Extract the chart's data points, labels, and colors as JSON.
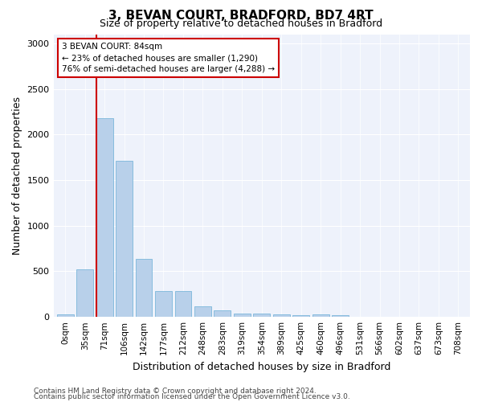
{
  "title": "3, BEVAN COURT, BRADFORD, BD7 4RT",
  "subtitle": "Size of property relative to detached houses in Bradford",
  "xlabel": "Distribution of detached houses by size in Bradford",
  "ylabel": "Number of detached properties",
  "categories": [
    "0sqm",
    "35sqm",
    "71sqm",
    "106sqm",
    "142sqm",
    "177sqm",
    "212sqm",
    "248sqm",
    "283sqm",
    "319sqm",
    "354sqm",
    "389sqm",
    "425sqm",
    "460sqm",
    "496sqm",
    "531sqm",
    "566sqm",
    "602sqm",
    "637sqm",
    "673sqm",
    "708sqm"
  ],
  "values": [
    30,
    520,
    2180,
    1710,
    640,
    280,
    280,
    120,
    70,
    40,
    35,
    25,
    20,
    25,
    20,
    0,
    0,
    0,
    0,
    0,
    0
  ],
  "bar_color": "#b8d0ea",
  "bar_edge_color": "#6aaed6",
  "vline_color": "#cc0000",
  "annotation_text": "3 BEVAN COURT: 84sqm\n← 23% of detached houses are smaller (1,290)\n76% of semi-detached houses are larger (4,288) →",
  "annotation_box_color": "white",
  "annotation_box_edge": "#cc0000",
  "ylim": [
    0,
    3100
  ],
  "yticks": [
    0,
    500,
    1000,
    1500,
    2000,
    2500,
    3000
  ],
  "bg_color": "#eef2fb",
  "grid_color": "white",
  "footer1": "Contains HM Land Registry data © Crown copyright and database right 2024.",
  "footer2": "Contains public sector information licensed under the Open Government Licence v3.0.",
  "title_fontsize": 11,
  "subtitle_fontsize": 9,
  "ylabel_fontsize": 9,
  "xlabel_fontsize": 9,
  "tick_fontsize": 7.5,
  "footer_fontsize": 6.5,
  "vline_bar_index": 2
}
